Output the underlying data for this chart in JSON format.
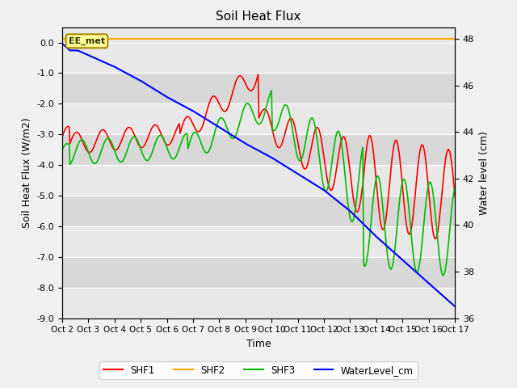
{
  "title": "Soil Heat Flux",
  "xlabel": "Time",
  "ylabel_left": "Soil Heat Flux (W/m2)",
  "ylabel_right": "Water level (cm)",
  "ylim_left": [
    -9.0,
    0.5
  ],
  "ylim_right": [
    36,
    48.5
  ],
  "yticks_left": [
    0.0,
    -1.0,
    -2.0,
    -3.0,
    -4.0,
    -5.0,
    -6.0,
    -7.0,
    -8.0,
    -9.0
  ],
  "yticks_right": [
    36,
    38,
    40,
    42,
    44,
    46,
    48
  ],
  "x_labels": [
    "Oct 2",
    "Oct 3",
    "Oct 4",
    "Oct 5",
    "Oct 6",
    "Oct 7",
    "Oct 8",
    "Oct 9",
    "Oct 10",
    "Oct 11",
    "Oct 12",
    "Oct 13",
    "Oct 14",
    "Oct 15",
    "Oct 16",
    "Oct 17"
  ],
  "figsize": [
    6.4,
    4.8
  ],
  "dpi": 100,
  "background_color": "#f0f0f0",
  "plot_bg_color": "#e8e8e8",
  "shf2_color": "#FFA500",
  "shf1_color": "#FF0000",
  "shf3_color": "#00BB00",
  "water_color": "#0000FF",
  "annotation_text": "EE_met",
  "annotation_bg": "#FFFF99",
  "annotation_border": "#AA8800",
  "band_colors": [
    "#e8e8e8",
    "#d8d8d8"
  ]
}
